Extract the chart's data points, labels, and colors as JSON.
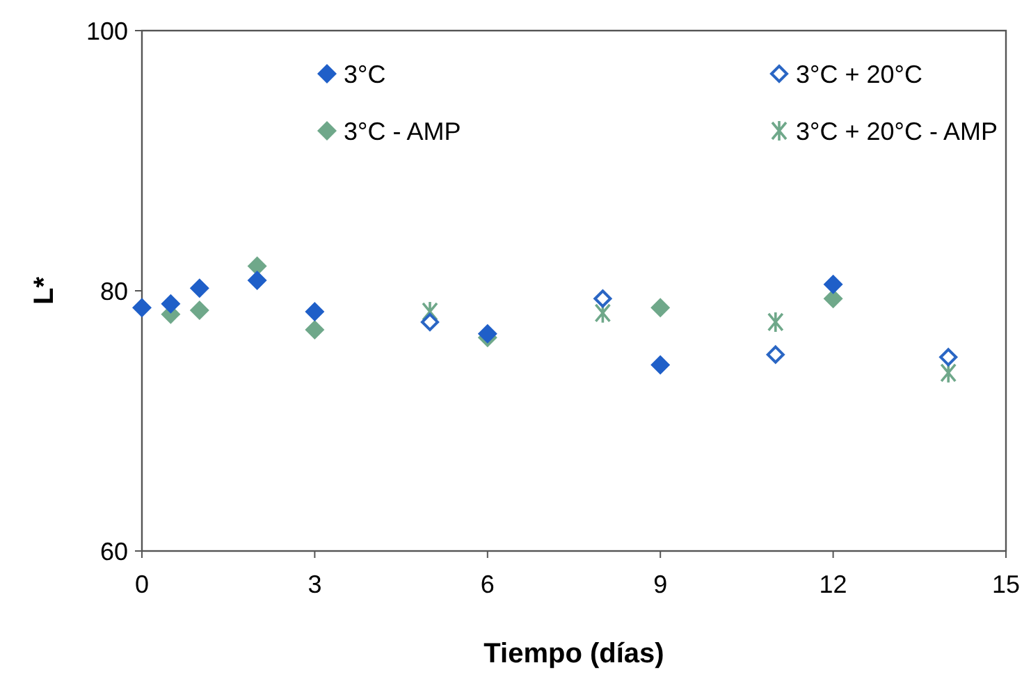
{
  "chart_data": {
    "type": "scatter",
    "xlabel": "Tiempo (días)",
    "ylabel": "L*",
    "xlim": [
      0,
      15
    ],
    "xticks": [
      0,
      3,
      6,
      9,
      12,
      15
    ],
    "ylim": [
      60,
      100
    ],
    "yticks": [
      60,
      80,
      100
    ],
    "grid": false,
    "legend": "top",
    "series": [
      {
        "name": "3°C",
        "color": "#1f5fc8",
        "marker": "diamond",
        "x": [
          0,
          0.5,
          1,
          2,
          3,
          6,
          9,
          12
        ],
        "values": [
          78.7,
          79.0,
          80.2,
          80.8,
          78.4,
          76.7,
          74.3,
          80.5
        ]
      },
      {
        "name": "3°C + 20°C",
        "color": "#2a66c4",
        "marker": "diamond-open",
        "x": [
          5,
          8,
          11,
          14
        ],
        "values": [
          77.6,
          79.4,
          75.1,
          74.9
        ]
      },
      {
        "name": "3°C - AMP",
        "color": "#6fa88a",
        "marker": "diamond",
        "x": [
          0.5,
          1,
          2,
          3,
          6,
          9,
          12
        ],
        "values": [
          78.2,
          78.5,
          81.9,
          77.0,
          76.4,
          78.7,
          79.4
        ]
      },
      {
        "name": "3°C + 20°C - AMP",
        "color": "#6fa88a",
        "marker": "cross",
        "x": [
          5,
          8,
          11,
          14
        ],
        "values": [
          78.4,
          78.3,
          77.6,
          73.7
        ]
      }
    ]
  }
}
